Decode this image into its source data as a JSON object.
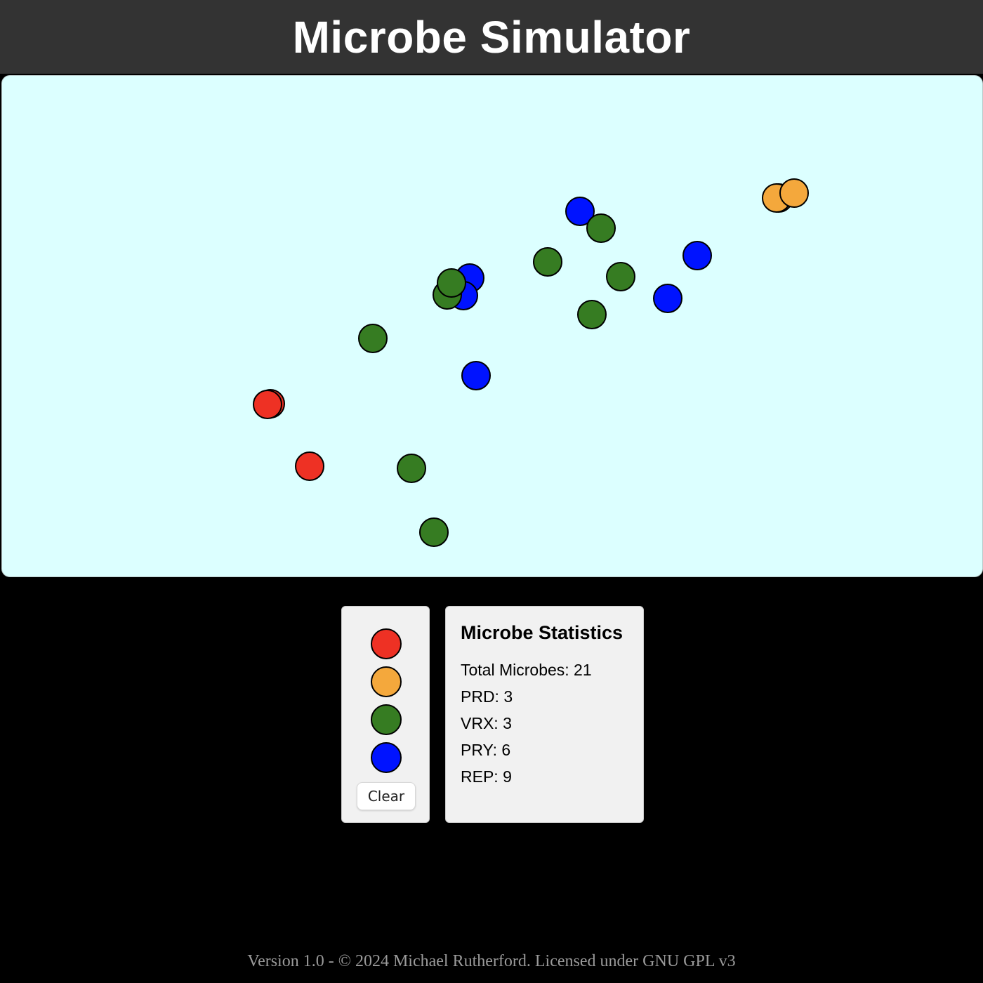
{
  "header": {
    "title": "Microbe Simulator"
  },
  "colors": {
    "PRD": "#ee3124",
    "VRX": "#f4a83c",
    "REP": "#367c22",
    "PRY": "#0013ff"
  },
  "palette": {
    "swatches": [
      {
        "type": "PRD",
        "color": "#ee3124",
        "icon": "red-microbe-swatch-icon"
      },
      {
        "type": "VRX",
        "color": "#f4a83c",
        "icon": "orange-microbe-swatch-icon"
      },
      {
        "type": "REP",
        "color": "#367c22",
        "icon": "green-microbe-swatch-icon"
      },
      {
        "type": "PRY",
        "color": "#0013ff",
        "icon": "blue-microbe-swatch-icon"
      }
    ],
    "clear_label": "Clear"
  },
  "stats": {
    "title": "Microbe Statistics",
    "total": "Total Microbes: 21",
    "prd": "PRD: 3",
    "vrx": "VRX: 3",
    "pry": "PRY: 6",
    "rep": "REP: 9"
  },
  "microbes": [
    {
      "type": "PRD"
    },
    {
      "type": "PRD"
    },
    {
      "type": "PRD"
    },
    {
      "type": "VRX"
    },
    {
      "type": "VRX"
    },
    {
      "type": "VRX"
    },
    {
      "type": "PRY"
    },
    {
      "type": "PRY"
    },
    {
      "type": "PRY"
    },
    {
      "type": "PRY"
    },
    {
      "type": "PRY"
    },
    {
      "type": "PRY"
    },
    {
      "type": "REP"
    },
    {
      "type": "REP"
    },
    {
      "type": "REP"
    },
    {
      "type": "REP"
    },
    {
      "type": "REP"
    },
    {
      "type": "REP"
    },
    {
      "type": "REP"
    },
    {
      "type": "REP"
    },
    {
      "type": "REP"
    }
  ],
  "footer": {
    "text": "Version 1.0 - © 2024 Michael Rutherford. Licensed under GNU GPL v3"
  }
}
